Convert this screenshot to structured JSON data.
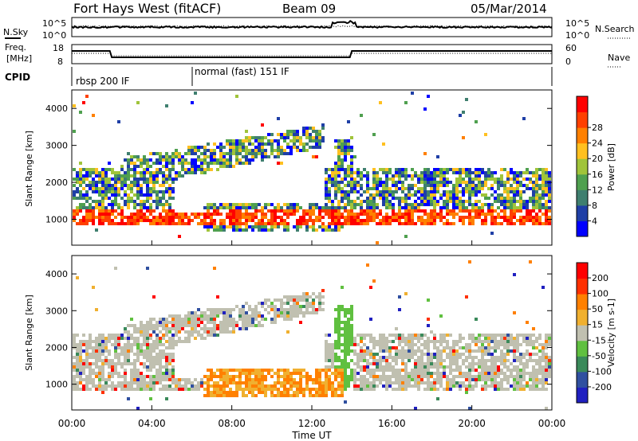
{
  "header": {
    "station": "Fort Hays West (fitACF)",
    "beam": "Beam 09",
    "date": "05/Mar/2014"
  },
  "noise_panel": {
    "left_label": "N.Sky",
    "right_label": "N.Search",
    "left_ticks": [
      "10^5",
      "10^0"
    ],
    "right_ticks": [
      "10^5",
      "10^0"
    ]
  },
  "freq_panel": {
    "left_label_1": "Freq.",
    "left_label_2": "[MHz]",
    "right_label": "Nave",
    "left_ticks": [
      "18",
      "8"
    ],
    "right_ticks": [
      "60",
      "0"
    ]
  },
  "cpid": {
    "label": "CPID",
    "segments": [
      {
        "start_hour": 0,
        "end_hour": 6,
        "name": "rbsp 200 IF"
      },
      {
        "start_hour": 6,
        "end_hour": 24,
        "name": "normal (fast) 151 IF"
      }
    ]
  },
  "colors": {
    "power_scale": [
      "#0000ff",
      "#1f3fa6",
      "#3f7f6f",
      "#4fa04f",
      "#a0c43a",
      "#ffc020",
      "#ff8000",
      "#ff4000",
      "#ff0000"
    ],
    "velocity_scale": [
      "#2020c0",
      "#3050a0",
      "#3a8a5a",
      "#60c040",
      "#c0c0b0",
      "#f0b030",
      "#ff8000",
      "#ff3000",
      "#ff0000"
    ]
  },
  "chart_data": [
    {
      "type": "heatmap",
      "quantity": "power",
      "ylabel": "Slant Range [km]",
      "xlabel": "Time UT",
      "ylim": [
        300,
        4500
      ],
      "yticks": [
        1000,
        2000,
        3000,
        4000
      ],
      "xlim": [
        0,
        24
      ],
      "xticks": [
        "00:00",
        "04:00",
        "08:00",
        "12:00",
        "16:00",
        "20:00",
        "00:00"
      ],
      "colorbar_label": "Power [dB]",
      "colorbar_ticks": [
        4,
        8,
        12,
        16,
        20,
        24,
        28
      ]
    },
    {
      "type": "heatmap",
      "quantity": "velocity",
      "ylabel": "Slant Range [km]",
      "xlabel": "Time UT",
      "ylim": [
        300,
        4500
      ],
      "yticks": [
        1000,
        2000,
        3000,
        4000
      ],
      "xlim": [
        0,
        24
      ],
      "xticks": [
        "00:00",
        "04:00",
        "08:00",
        "12:00",
        "16:00",
        "20:00",
        "00:00"
      ],
      "colorbar_label": "Velocity [m s-1]",
      "colorbar_ticks": [
        200,
        100,
        50,
        15,
        -15,
        -50,
        -100,
        -200
      ]
    }
  ]
}
